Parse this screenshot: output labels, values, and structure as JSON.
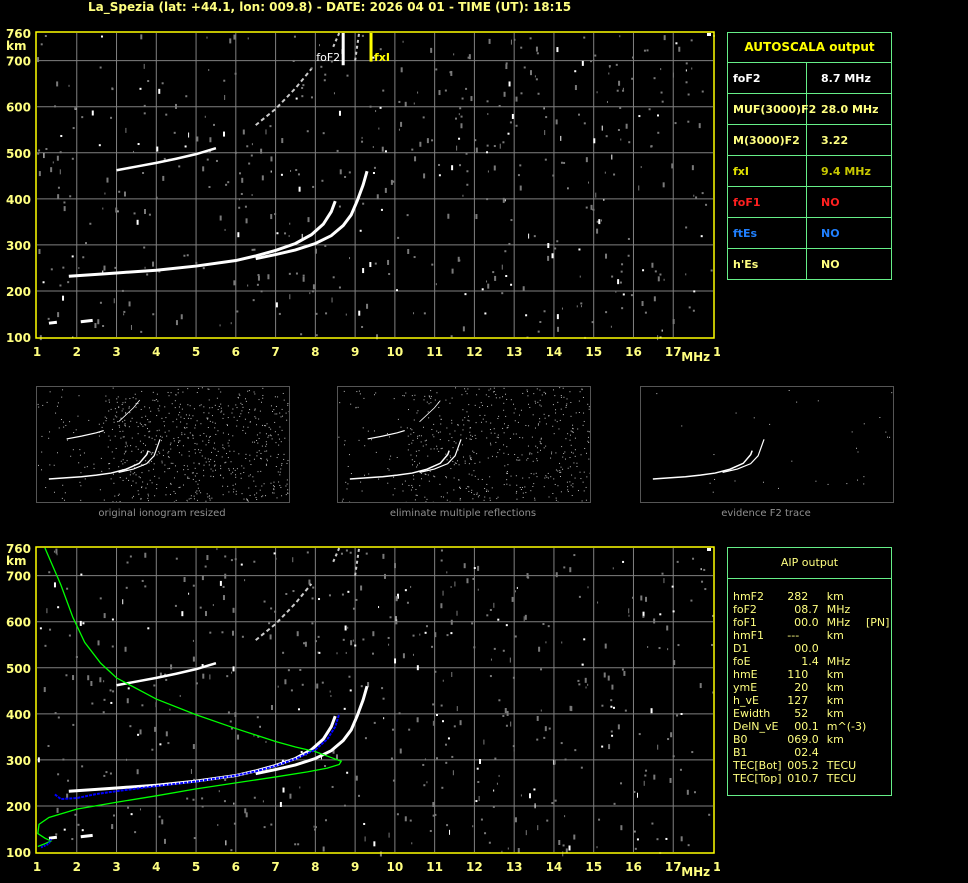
{
  "header": {
    "title": "La_Spezia (lat: +44.1, lon: 009.8) - DATE: 2026 04 01 - TIME (UT): 18:15"
  },
  "axes": {
    "x_ticks": [
      "1",
      "2",
      "3",
      "4",
      "5",
      "6",
      "7",
      "8",
      "9",
      "10",
      "11",
      "12",
      "13",
      "14",
      "15",
      "16",
      "17",
      "18"
    ],
    "x_unit": "MHz",
    "y_ticks": [
      "760",
      "700",
      "600",
      "500",
      "400",
      "300",
      "200",
      "100"
    ],
    "y_unit": "km",
    "x_range": [
      1,
      18
    ],
    "y_range": [
      100,
      760
    ]
  },
  "markers": {
    "foF2": {
      "label": "foF2",
      "value": 8.7,
      "color": "#ffffff"
    },
    "fxI": {
      "label": "fxI",
      "value": 9.4,
      "color": "#ffff00"
    }
  },
  "autoscala": {
    "title": "AUTOSCALA output",
    "rows": [
      {
        "key": "foF2",
        "value": "8.7 MHz",
        "color": "#ffffff",
        "value_color": "#ffffff"
      },
      {
        "key": "MUF(3000)F2",
        "value": "28.0 MHz",
        "color": "#ffff80",
        "value_color": "#ffff80"
      },
      {
        "key": "M(3000)F2",
        "value": "3.22",
        "color": "#ffff80",
        "value_color": "#ffff80"
      },
      {
        "key": "fxI",
        "value": "9.4 MHz",
        "color": "#e0e000",
        "value_color": "#c8c800"
      },
      {
        "key": "foF1",
        "value": "NO",
        "color": "#ff2020",
        "value_color": "#ff2020"
      },
      {
        "key": "ftEs",
        "value": "NO",
        "color": "#2080ff",
        "value_color": "#2080ff"
      },
      {
        "key": "h'Es",
        "value": "NO",
        "color": "#ffff80",
        "value_color": "#ffff80"
      }
    ]
  },
  "thumbnails": [
    {
      "caption": "original ionogram resized"
    },
    {
      "caption": "eliminate multiple reflections"
    },
    {
      "caption": "evidence F2 trace"
    }
  ],
  "aip": {
    "title": "AIP output",
    "rows": [
      {
        "name": "hmF2",
        "value": "282",
        "unit": "km",
        "extra": ""
      },
      {
        "name": "foF2",
        "value": "  08.7",
        "unit": "MHz",
        "extra": ""
      },
      {
        "name": "foF1",
        "value": "  00.0",
        "unit": "MHz",
        "extra": "[PN]"
      },
      {
        "name": "hmF1",
        "value": "---",
        "unit": "km",
        "extra": ""
      },
      {
        "name": "D1",
        "value": "  00.0",
        "unit": "",
        "extra": ""
      },
      {
        "name": "foE",
        "value": "    1.4",
        "unit": "MHz",
        "extra": ""
      },
      {
        "name": "hmE",
        "value": "110",
        "unit": "km",
        "extra": ""
      },
      {
        "name": "ymE",
        "value": "  20",
        "unit": "km",
        "extra": ""
      },
      {
        "name": "h_vE",
        "value": "127",
        "unit": "km",
        "extra": ""
      },
      {
        "name": "Ewidth",
        "value": "  52",
        "unit": "km",
        "extra": ""
      },
      {
        "name": "DelN_vE",
        "value": "  00.1",
        "unit": "m^(-3)",
        "extra": ""
      },
      {
        "name": "B0",
        "value": "069.0",
        "unit": "km",
        "extra": ""
      },
      {
        "name": "B1",
        "value": "  02.4",
        "unit": "",
        "extra": ""
      },
      {
        "name": "TEC[Bot]",
        "value": "005.2",
        "unit": "TECU",
        "extra": ""
      },
      {
        "name": "TEC[Top]",
        "value": "010.7",
        "unit": "TECU",
        "extra": ""
      }
    ]
  },
  "colors": {
    "frame": "#ffff00",
    "grid": "#808080",
    "trace": "#ffffff",
    "profile": "#00ff00",
    "fit": "#0000ff",
    "panel_border": "#66ee88"
  }
}
